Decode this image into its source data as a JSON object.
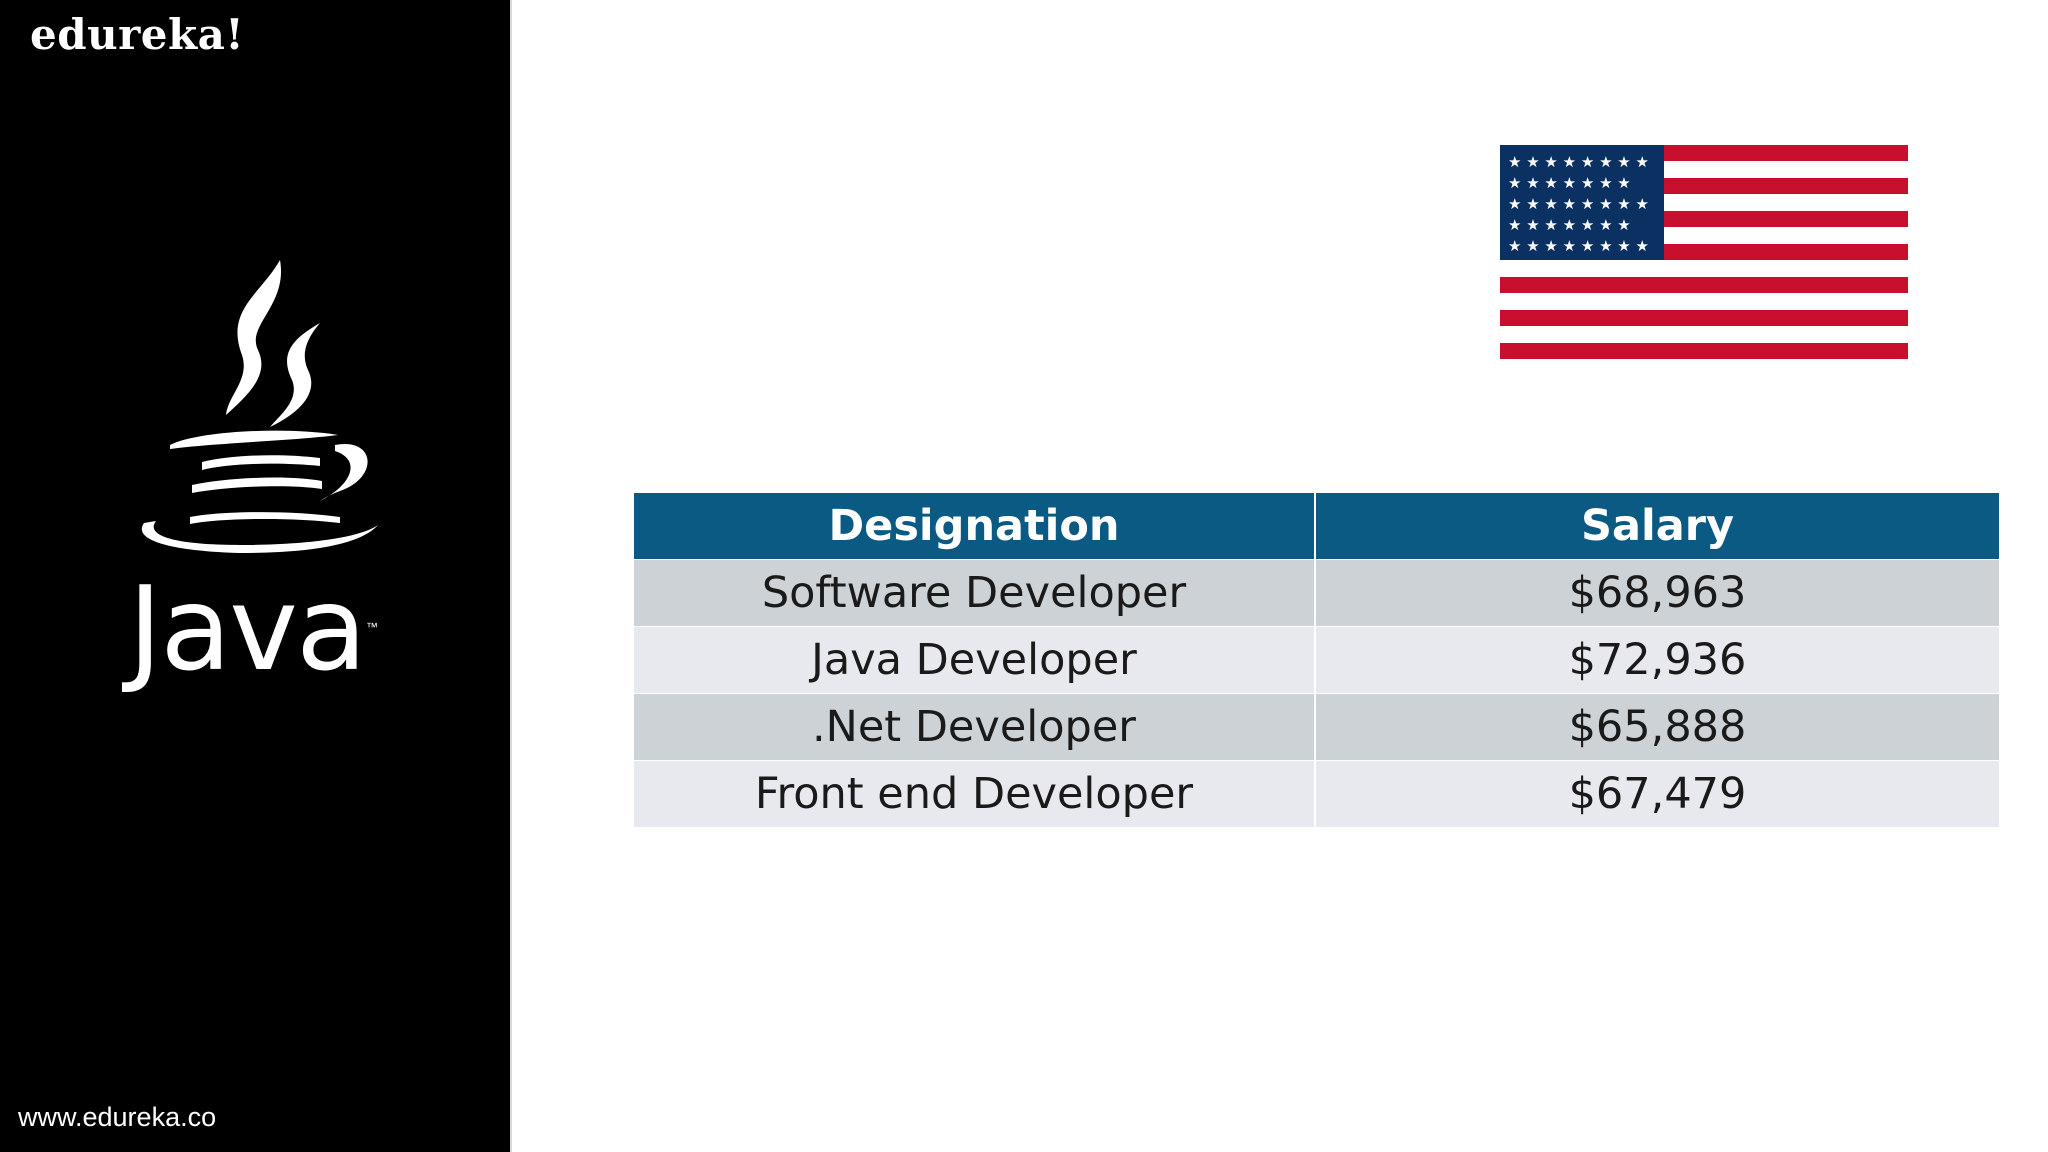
{
  "brand": {
    "logo_text": "edureka!",
    "website": "www.edureka.co"
  },
  "java_logo": {
    "wordmark": "Java",
    "trademark": "™"
  },
  "flag": {
    "icon": "us-flag-icon",
    "colors": {
      "red": "#c8102e",
      "blue": "#0a3161",
      "white": "#ffffff"
    }
  },
  "table": {
    "headers": {
      "designation": "Designation",
      "salary": "Salary"
    },
    "rows": [
      {
        "designation": "Software Developer",
        "salary": "$68,963"
      },
      {
        "designation": "Java Developer",
        "salary": "$72,936"
      },
      {
        "designation": ".Net Developer",
        "salary": "$65,888"
      },
      {
        "designation": "Front end Developer",
        "salary": "$67,479"
      }
    ],
    "colors": {
      "header_bg": "#0a5a84",
      "row_dark": "#cdd2d7",
      "row_light": "#e8e9ee"
    }
  }
}
